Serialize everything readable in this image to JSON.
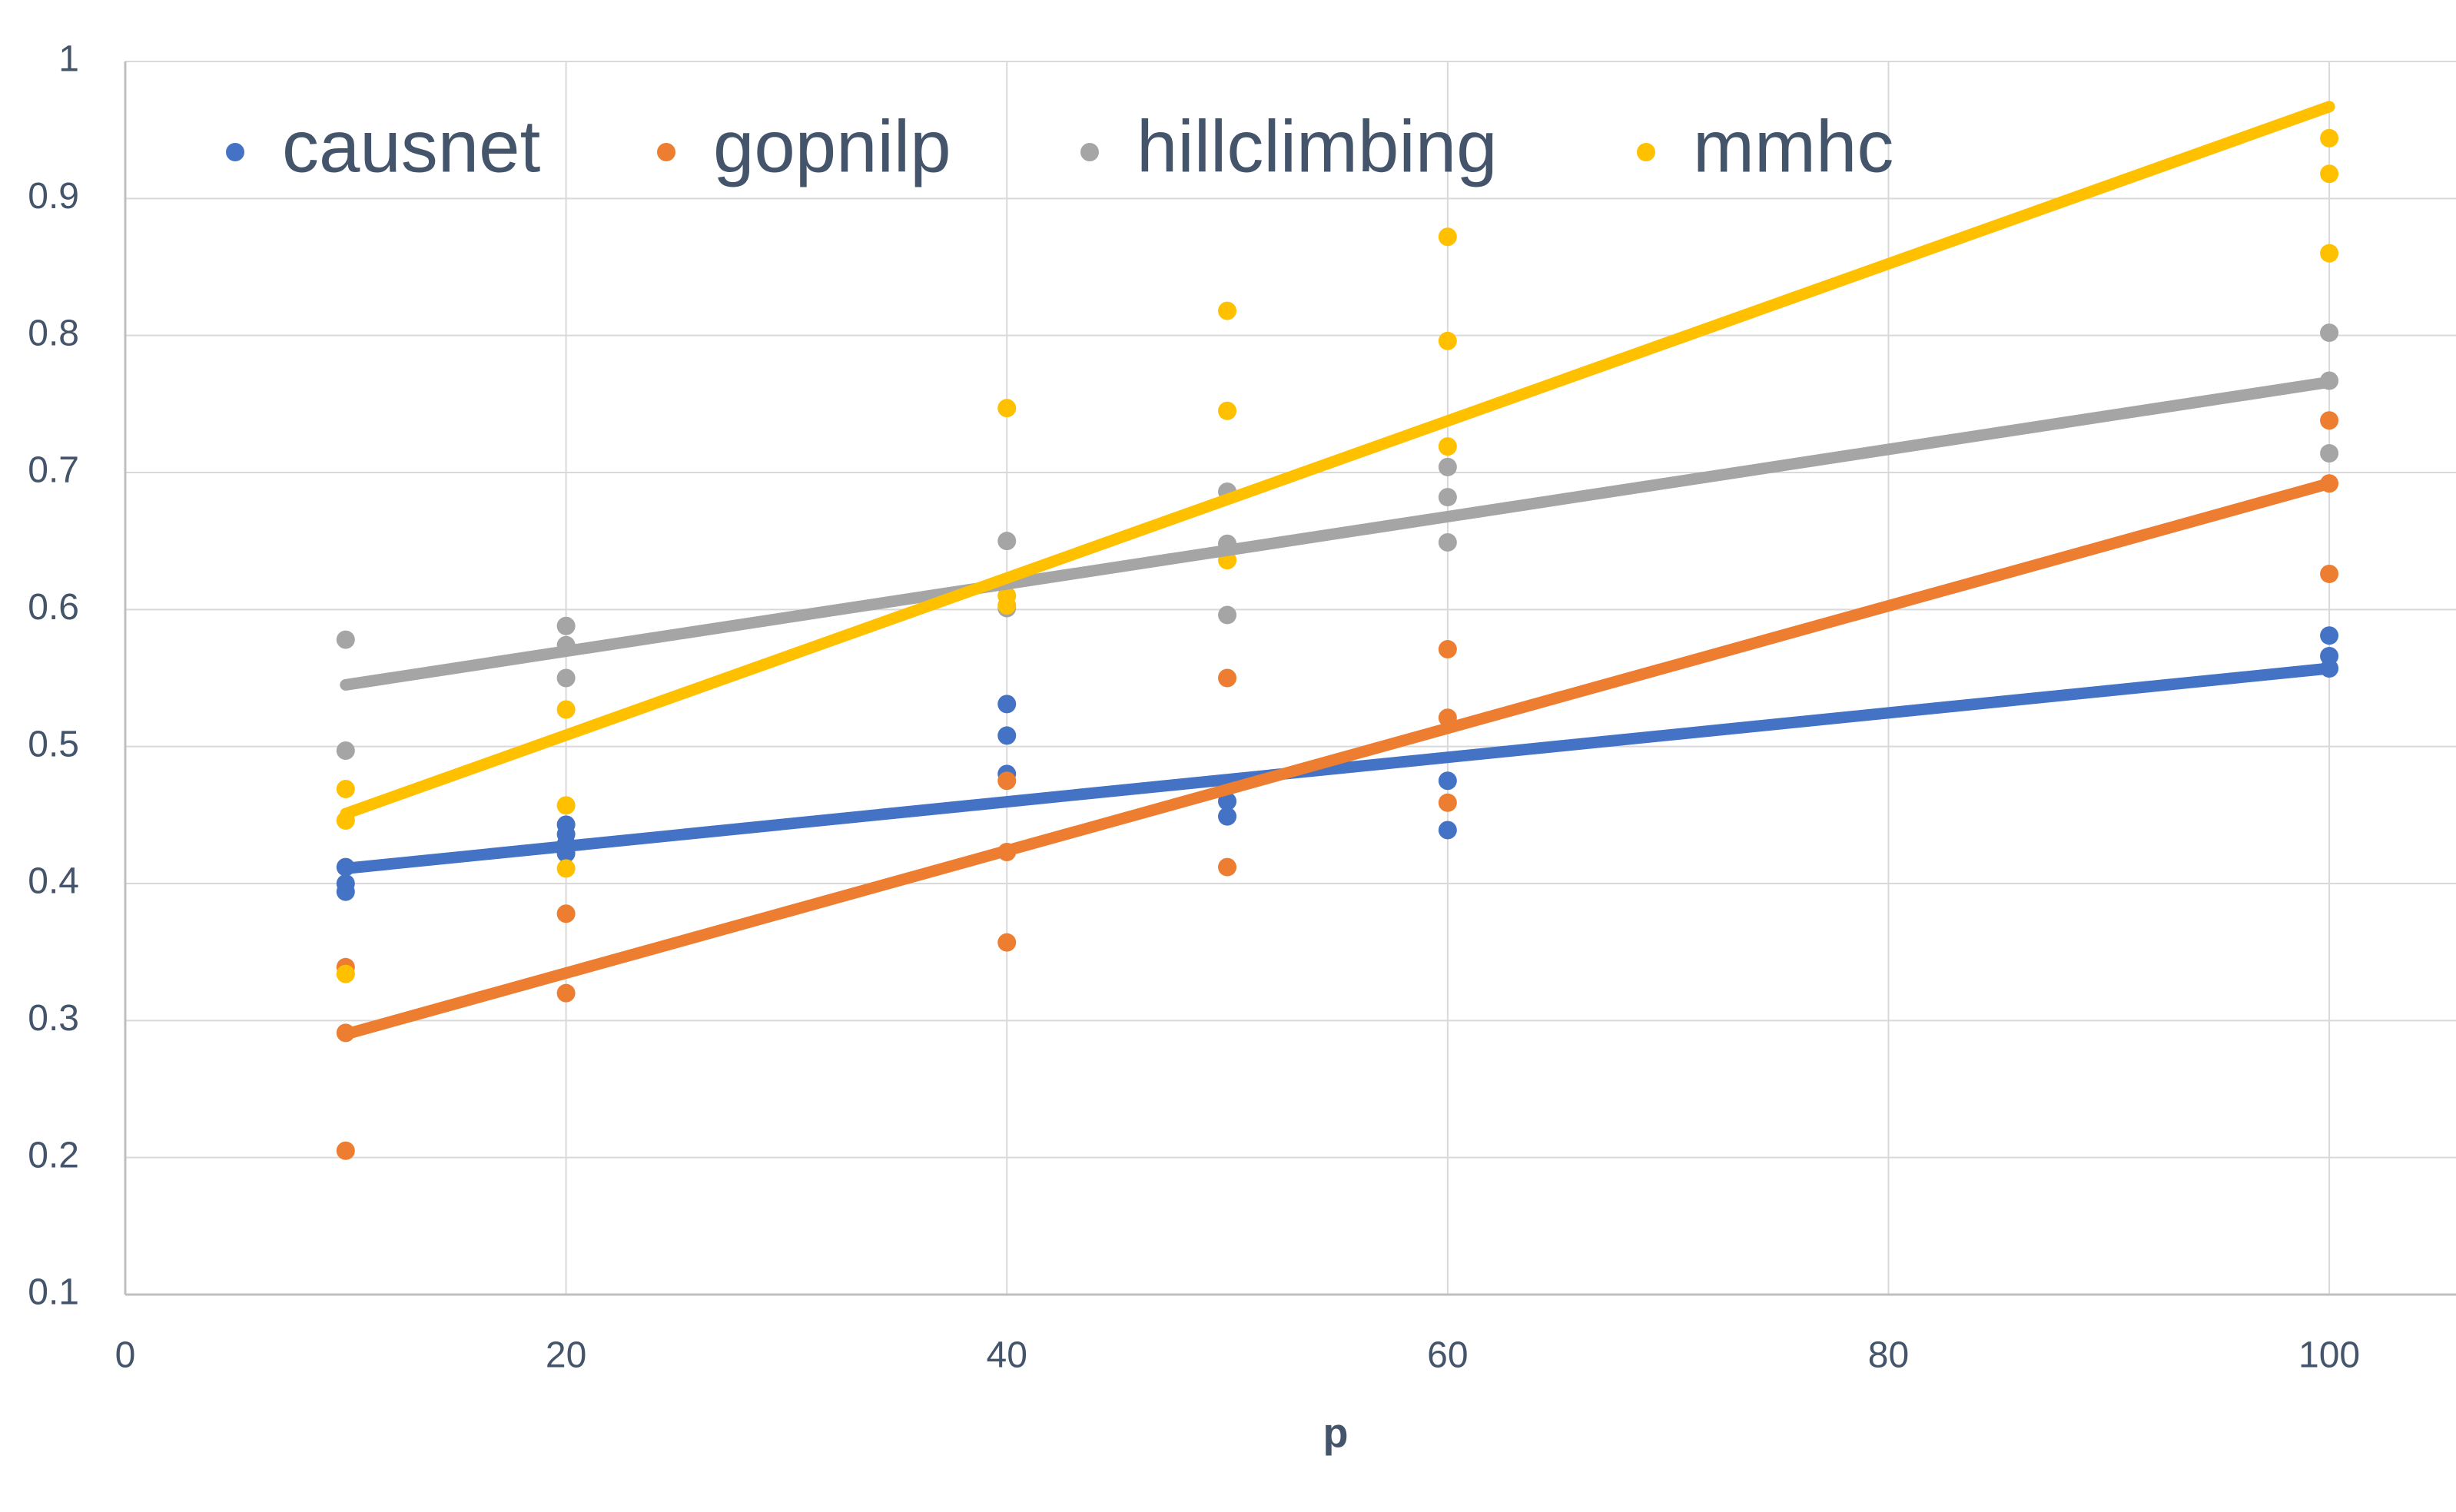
{
  "chart_data": {
    "type": "scatter",
    "x_label": "p",
    "xlim": [
      0,
      105.75
    ],
    "xticks": [
      0,
      20,
      40,
      60,
      80,
      100
    ],
    "ylim": [
      0.1,
      1
    ],
    "yticks": [
      0.1,
      0.2,
      0.3,
      0.4,
      0.5,
      0.6,
      0.7,
      0.8,
      0.9,
      1
    ],
    "grid": true,
    "series": [
      {
        "name": "causnet",
        "color": "#4472c4",
        "x": [
          10,
          10,
          10,
          20,
          20,
          20,
          20,
          40,
          40,
          40,
          50,
          50,
          60,
          60,
          100,
          100,
          100
        ],
        "values": [
          0.412,
          0.4,
          0.394,
          0.443,
          0.436,
          0.429,
          0.422,
          0.531,
          0.508,
          0.48,
          0.46,
          0.449,
          0.475,
          0.439,
          0.581,
          0.566,
          0.557
        ],
        "trend": {
          "x": [
            10,
            100
          ],
          "values": [
            0.411,
            0.557
          ]
        }
      },
      {
        "name": "gopnilp",
        "color": "#ed7d31",
        "x": [
          10,
          10,
          10,
          20,
          20,
          40,
          40,
          40,
          50,
          50,
          60,
          60,
          60,
          100,
          100,
          100
        ],
        "values": [
          0.339,
          0.291,
          0.205,
          0.378,
          0.32,
          0.475,
          0.423,
          0.357,
          0.55,
          0.412,
          0.571,
          0.521,
          0.459,
          0.738,
          0.692,
          0.626
        ],
        "trend": {
          "x": [
            10,
            100
          ],
          "values": [
            0.29,
            0.692
          ]
        }
      },
      {
        "name": "hillclimbing",
        "color": "#a5a5a5",
        "x": [
          10,
          10,
          20,
          20,
          20,
          40,
          40,
          50,
          50,
          50,
          60,
          60,
          60,
          100,
          100,
          100
        ],
        "values": [
          0.578,
          0.497,
          0.588,
          0.574,
          0.55,
          0.65,
          0.601,
          0.686,
          0.648,
          0.596,
          0.704,
          0.682,
          0.649,
          0.802,
          0.767,
          0.714
        ],
        "trend": {
          "x": [
            10,
            100
          ],
          "values": [
            0.545,
            0.766
          ]
        }
      },
      {
        "name": "mmhc",
        "color": "#ffc000",
        "x": [
          10,
          10,
          10,
          20,
          20,
          20,
          40,
          40,
          40,
          50,
          50,
          50,
          60,
          60,
          60,
          100,
          100,
          100
        ],
        "values": [
          0.469,
          0.446,
          0.334,
          0.527,
          0.457,
          0.411,
          0.747,
          0.61,
          0.603,
          0.818,
          0.745,
          0.636,
          0.872,
          0.796,
          0.719,
          0.944,
          0.918,
          0.86
        ],
        "trend": {
          "x": [
            10,
            100
          ],
          "values": [
            0.451,
            0.967
          ]
        }
      }
    ]
  }
}
